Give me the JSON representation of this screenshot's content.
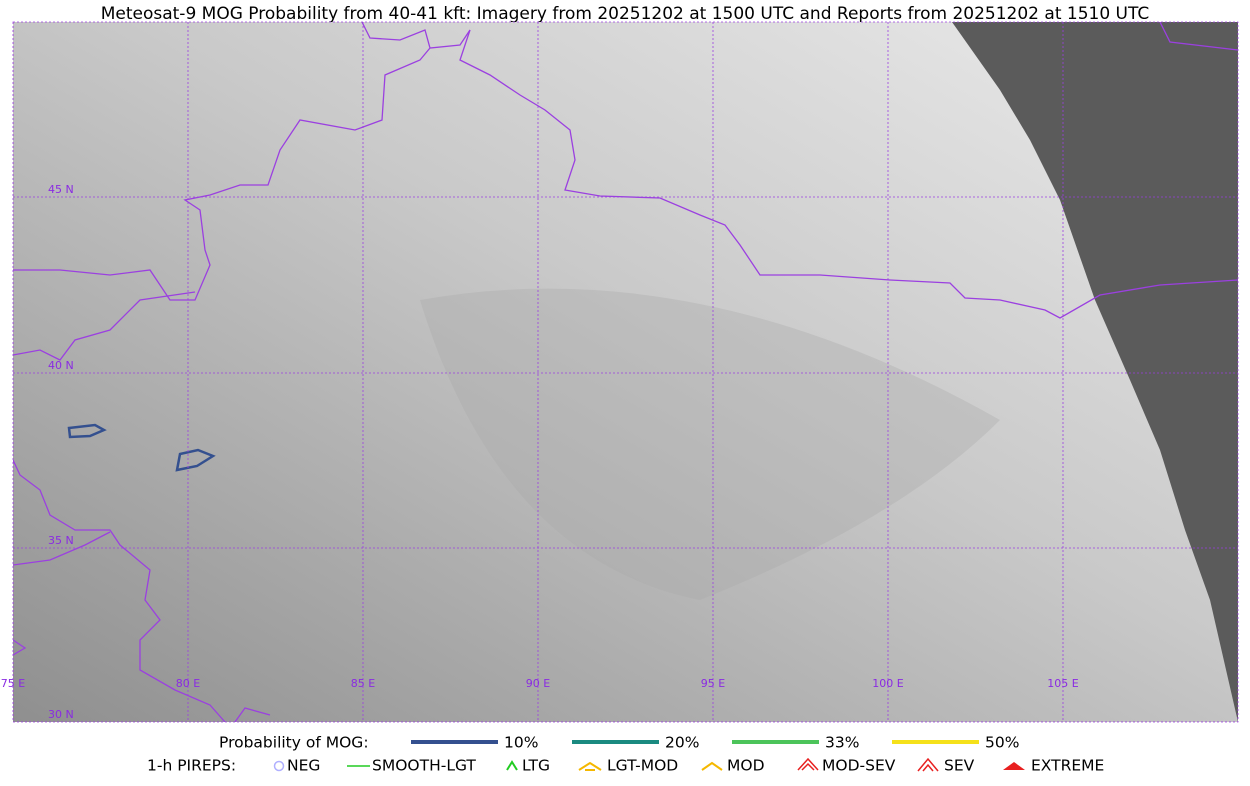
{
  "title": "Meteosat-9 MOG Probability from 40-41 kft: Imagery from 20251202 at 1500 UTC and Reports from 20251202 at 1510 UTC",
  "map": {
    "lat_labels": [
      "45 N",
      "40 N",
      "35 N",
      "30 N"
    ],
    "lon_labels": [
      "75 E",
      "80 E",
      "85 E",
      "90 E",
      "95 E",
      "100 E",
      "105 E"
    ]
  },
  "legend": {
    "mog_title": "Probability of MOG:",
    "mog_items": [
      {
        "label": "10%",
        "color": "#34508f"
      },
      {
        "label": "20%",
        "color": "#1a8a80"
      },
      {
        "label": "33%",
        "color": "#4cc45a"
      },
      {
        "label": "50%",
        "color": "#f5e11a"
      }
    ],
    "pireps_title": "1-h PIREPS:",
    "pirep_items": [
      {
        "label": "NEG",
        "color": "#b0b0ff"
      },
      {
        "label": "SMOOTH-LGT",
        "color": "#22cc22"
      },
      {
        "label": "LTG",
        "color": "#22cc22"
      },
      {
        "label": "LGT-MOD",
        "color": "#f5b800"
      },
      {
        "label": "MOD",
        "color": "#f5b800"
      },
      {
        "label": "MOD-SEV",
        "color": "#e82020"
      },
      {
        "label": "SEV",
        "color": "#e82020"
      },
      {
        "label": "EXTREME",
        "color": "#e82020"
      }
    ]
  }
}
